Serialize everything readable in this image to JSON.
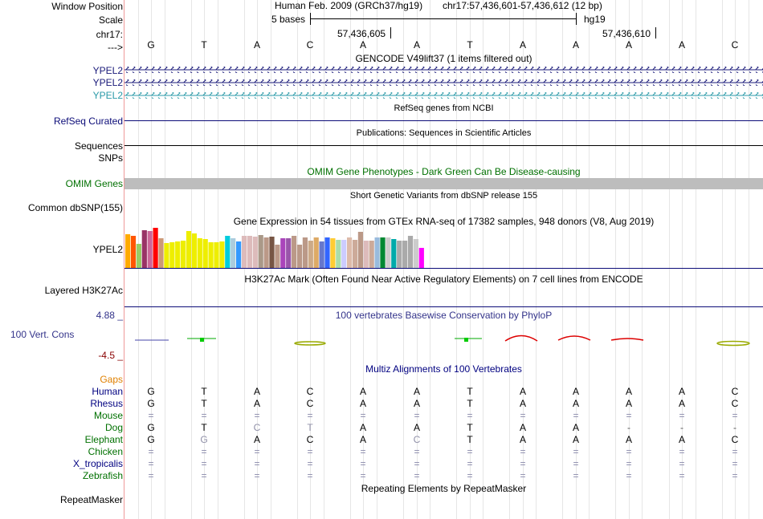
{
  "header": {
    "window_position_label": "Window Position",
    "scale_label": "Scale",
    "chrom_label": "chr17:",
    "strand_label": "--->",
    "assembly": "Human Feb. 2009 (GRCh37/hg19)",
    "position": "chr17:57,436,601-57,436,612 (12 bp)",
    "scale_text": "5 bases",
    "db": "hg19",
    "coord1": "57,436,605",
    "coord2": "57,436,610",
    "bases": [
      "G",
      "T",
      "A",
      "C",
      "A",
      "A",
      "T",
      "A",
      "A",
      "A",
      "A",
      "C"
    ]
  },
  "tracks": {
    "gencode_title": "GENCODE V49lift37 (1 items filtered out)",
    "ypel2_labels": [
      "YPEL2",
      "YPEL2",
      "YPEL2"
    ],
    "refseq_title": "RefSeq genes from NCBI",
    "refseq_label": "RefSeq Curated",
    "pubs_title": "Publications: Sequences in Scientific Articles",
    "sequences_label": "Sequences",
    "snps_label": "SNPs",
    "omim_title": "OMIM Gene Phenotypes - Dark Green Can Be Disease-causing",
    "omim_label": "OMIM Genes",
    "dbsnp_title": "Short Genetic Variants from dbSNP release 155",
    "dbsnp_label": "Common dbSNP(155)",
    "gtex_title": "Gene Expression in 54 tissues from GTEx RNA-seq of 17382 samples, 948 donors (V8, Aug 2019)",
    "gtex_label": "YPEL2",
    "h3k27ac_title": "H3K27Ac Mark (Often Found Near Active Regulatory Elements) on 7 cell lines from ENCODE",
    "h3k27ac_label": "Layered H3K27Ac",
    "phylop_title": "100 vertebrates Basewise Conservation by PhyloP",
    "phylop_label": "100 Vert. Cons",
    "phylop_max": "4.88 _",
    "phylop_min": "-4.5 _",
    "multiz_title": "Multiz Alignments of 100 Vertebrates",
    "gaps_label": "Gaps",
    "repeat_title": "Repeating Elements by RepeatMasker",
    "repeat_label": "RepeatMasker"
  },
  "gtex_bars": {
    "values": [
      42,
      40,
      30,
      47,
      46,
      50,
      37,
      31,
      32,
      33,
      34,
      46,
      43,
      37,
      36,
      32,
      32,
      33,
      40,
      37,
      33,
      40,
      40,
      39,
      41,
      38,
      39,
      29,
      37,
      37,
      40,
      29,
      38,
      34,
      38,
      33,
      38,
      37,
      35,
      35,
      38,
      35,
      45,
      34,
      34,
      38,
      38,
      38,
      36,
      34,
      34,
      40,
      36,
      25
    ],
    "colors": [
      "#ffaa00",
      "#ff5500",
      "#99cc66",
      "#993366",
      "#cc6699",
      "#ff0000",
      "#cc9977",
      "#eeee00",
      "#eeee00",
      "#eeee00",
      "#eeee00",
      "#eeee00",
      "#eeee00",
      "#eeee00",
      "#eeee00",
      "#eeee00",
      "#eeee00",
      "#eeee00",
      "#00ccdd",
      "#aaccdd",
      "#3399ff",
      "#ddbbbb",
      "#ddbbbb",
      "#ddbbbb",
      "#aa9988",
      "#bb9988",
      "#775544",
      "#bb9988",
      "#aa44bb",
      "#9955aa",
      "#bb9988",
      "#bb9988",
      "#bb9988",
      "#ccaa88",
      "#ddaa66",
      "#6677cc",
      "#3366ff",
      "#ffcc33",
      "#aaddaa",
      "#ccccff",
      "#ddbbaa",
      "#ccaa99",
      "#bb9988",
      "#ddbbbb",
      "#ccaa99",
      "#99bbdd",
      "#008833",
      "#cccccc",
      "#00aaaa",
      "#aaaaaa",
      "#aaaaaa",
      "#aaaaaa",
      "#cccccc",
      "#ff00ff"
    ]
  },
  "multiz": {
    "species": [
      {
        "name": "Human",
        "bases": [
          "G",
          "T",
          "A",
          "C",
          "A",
          "A",
          "T",
          "A",
          "A",
          "A",
          "A",
          "C"
        ]
      },
      {
        "name": "Rhesus",
        "bases": [
          "G",
          "T",
          "A",
          "C",
          "A",
          "A",
          "T",
          "A",
          "A",
          "A",
          "A",
          "C"
        ]
      },
      {
        "name": "Mouse",
        "bases": [
          "=",
          "=",
          "=",
          "=",
          "=",
          "=",
          "=",
          "=",
          "=",
          "=",
          "=",
          "="
        ]
      },
      {
        "name": "Dog",
        "bases": [
          "G",
          "T",
          "C",
          "T",
          "A",
          "A",
          "T",
          "A",
          "A",
          "-",
          "-",
          "-"
        ]
      },
      {
        "name": "Elephant",
        "bases": [
          "G",
          "G",
          "A",
          "C",
          "A",
          "C",
          "T",
          "A",
          "A",
          "A",
          "A",
          "C"
        ]
      },
      {
        "name": "Chicken",
        "bases": [
          "=",
          "=",
          "=",
          "=",
          "=",
          "=",
          "=",
          "=",
          "=",
          "=",
          "=",
          "="
        ]
      },
      {
        "name": "X_tropicalis",
        "bases": [
          "=",
          "=",
          "=",
          "=",
          "=",
          "=",
          "=",
          "=",
          "=",
          "=",
          "=",
          "="
        ]
      },
      {
        "name": "Zebrafish",
        "bases": [
          "=",
          "=",
          "=",
          "=",
          "=",
          "=",
          "=",
          "=",
          "=",
          "=",
          "=",
          "="
        ]
      }
    ]
  },
  "colors": {
    "ypel2_dark": "#1a1a7a",
    "ypel2_light": "#2a9aa8",
    "refseq": "#0c0c78",
    "omim_green": "#007000",
    "phylop_blue": "#33338a",
    "phylop_red": "#8a0000",
    "gaps_orange": "#e08000",
    "species_green": "#007000",
    "species_blue": "#000080"
  }
}
